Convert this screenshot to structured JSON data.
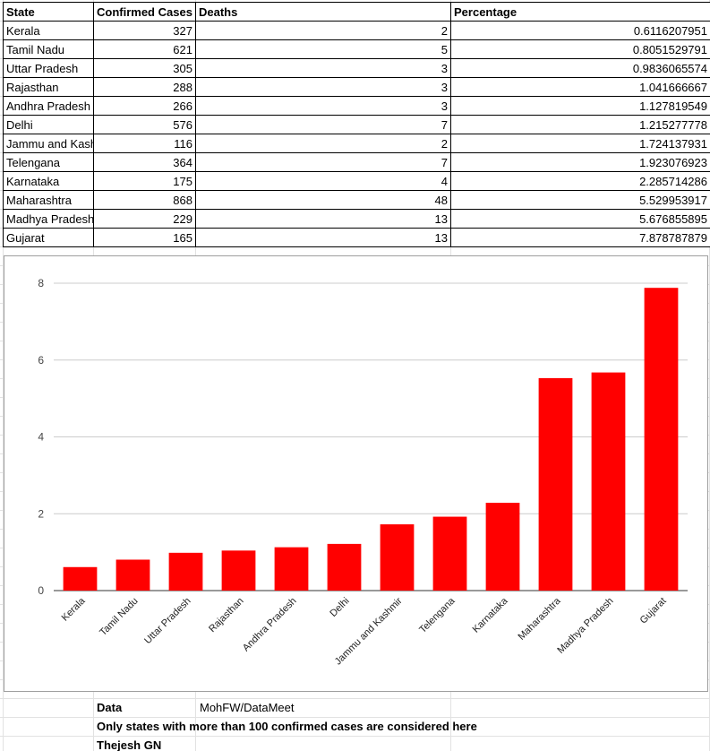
{
  "table": {
    "headers": [
      "State",
      "Confirmed Cases",
      "Deaths",
      "Percentage"
    ],
    "rows": [
      [
        "Kerala",
        "327",
        "2",
        "0.6116207951"
      ],
      [
        "Tamil Nadu",
        "621",
        "5",
        "0.8051529791"
      ],
      [
        "Uttar Pradesh",
        "305",
        "3",
        "0.9836065574"
      ],
      [
        "Rajasthan",
        "288",
        "3",
        "1.041666667"
      ],
      [
        "Andhra Pradesh",
        "266",
        "3",
        "1.127819549"
      ],
      [
        "Delhi",
        "576",
        "7",
        "1.215277778"
      ],
      [
        "Jammu and Kashmir",
        "116",
        "2",
        "1.724137931"
      ],
      [
        "Telengana",
        "364",
        "7",
        "1.923076923"
      ],
      [
        "Karnataka",
        "175",
        "4",
        "2.285714286"
      ],
      [
        "Maharashtra",
        "868",
        "48",
        "5.529953917"
      ],
      [
        "Madhya Pradesh",
        "229",
        "13",
        "5.676855895"
      ],
      [
        "Gujarat",
        "165",
        "13",
        "7.878787879"
      ]
    ]
  },
  "chart_data": {
    "type": "bar",
    "categories": [
      "Kerala",
      "Tamil Nadu",
      "Uttar Pradesh",
      "Rajasthan",
      "Andhra Pradesh",
      "Delhi",
      "Jammu and Kashmir",
      "Telengana",
      "Karnataka",
      "Maharashtra",
      "Madhya Pradesh",
      "Gujarat"
    ],
    "values": [
      0.6116207951,
      0.8051529791,
      0.9836065574,
      1.041666667,
      1.127819549,
      1.215277778,
      1.724137931,
      1.923076923,
      2.285714286,
      5.529953917,
      5.676855895,
      7.878787879
    ],
    "yticks": [
      "0",
      "2",
      "4",
      "6",
      "8"
    ],
    "ylim": [
      0,
      8
    ],
    "title": "",
    "xlabel": "",
    "ylabel": "",
    "bar_color": "#ff0000"
  },
  "footer": {
    "data_label": "Data",
    "data_value": "MohFW/DataMeet",
    "note": "Only states with more than 100 confirmed cases are considered here",
    "author": "Thejesh GN"
  }
}
